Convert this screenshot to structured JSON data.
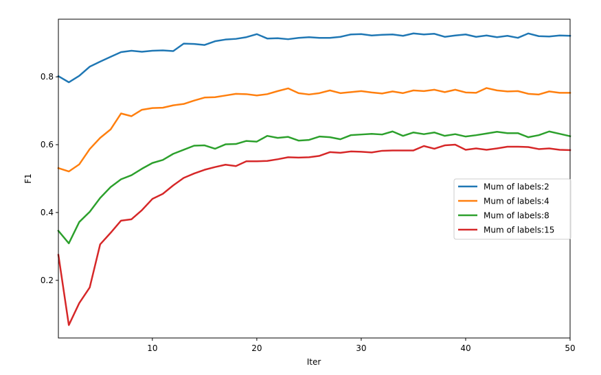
{
  "chart_data": {
    "type": "line",
    "title": "",
    "xlabel": "Iter",
    "ylabel": "F1",
    "xlim": [
      1,
      50
    ],
    "ylim": [
      0.03,
      0.97
    ],
    "xticks": [
      10,
      20,
      30,
      40,
      50
    ],
    "yticks": [
      0.2,
      0.4,
      0.6,
      0.8
    ],
    "grid": false,
    "legend_position": "center-right",
    "x": [
      1,
      2,
      3,
      4,
      5,
      6,
      7,
      8,
      9,
      10,
      11,
      12,
      13,
      14,
      15,
      16,
      17,
      18,
      19,
      20,
      21,
      22,
      23,
      24,
      25,
      26,
      27,
      28,
      29,
      30,
      31,
      32,
      33,
      34,
      35,
      36,
      37,
      38,
      39,
      40,
      41,
      42,
      43,
      44,
      45,
      46,
      47,
      48,
      49,
      50
    ],
    "series": [
      {
        "name": "Mum of labels:2",
        "color": "#1f77b4",
        "values": [
          0.802,
          0.784,
          0.803,
          0.83,
          0.845,
          0.859,
          0.873,
          0.877,
          0.874,
          0.877,
          0.878,
          0.876,
          0.898,
          0.897,
          0.894,
          0.905,
          0.91,
          0.912,
          0.917,
          0.926,
          0.913,
          0.914,
          0.911,
          0.915,
          0.917,
          0.915,
          0.915,
          0.918,
          0.925,
          0.926,
          0.922,
          0.924,
          0.925,
          0.921,
          0.928,
          0.925,
          0.927,
          0.918,
          0.922,
          0.925,
          0.918,
          0.922,
          0.917,
          0.921,
          0.915,
          0.928,
          0.92,
          0.919,
          0.922,
          0.921
        ]
      },
      {
        "name": "Mum of labels:4",
        "color": "#ff7f0e",
        "values": [
          0.531,
          0.521,
          0.542,
          0.587,
          0.62,
          0.645,
          0.692,
          0.684,
          0.703,
          0.708,
          0.709,
          0.716,
          0.72,
          0.73,
          0.739,
          0.74,
          0.745,
          0.75,
          0.749,
          0.745,
          0.749,
          0.758,
          0.766,
          0.752,
          0.748,
          0.752,
          0.76,
          0.752,
          0.755,
          0.758,
          0.754,
          0.751,
          0.757,
          0.752,
          0.76,
          0.758,
          0.762,
          0.755,
          0.762,
          0.754,
          0.753,
          0.767,
          0.76,
          0.757,
          0.758,
          0.75,
          0.748,
          0.757,
          0.753,
          0.753
        ]
      },
      {
        "name": "Mum of labels:8",
        "color": "#2ca02c",
        "values": [
          0.346,
          0.309,
          0.372,
          0.402,
          0.443,
          0.475,
          0.498,
          0.51,
          0.529,
          0.546,
          0.555,
          0.573,
          0.585,
          0.597,
          0.598,
          0.588,
          0.601,
          0.602,
          0.611,
          0.609,
          0.626,
          0.62,
          0.623,
          0.612,
          0.614,
          0.624,
          0.622,
          0.616,
          0.628,
          0.63,
          0.632,
          0.63,
          0.639,
          0.626,
          0.636,
          0.631,
          0.636,
          0.626,
          0.631,
          0.624,
          0.628,
          0.633,
          0.638,
          0.634,
          0.634,
          0.622,
          0.628,
          0.639,
          0.632,
          0.625
        ]
      },
      {
        "name": "Mum of labels:15",
        "color": "#d62728",
        "values": [
          0.275,
          0.068,
          0.133,
          0.179,
          0.306,
          0.34,
          0.376,
          0.38,
          0.407,
          0.44,
          0.455,
          0.48,
          0.502,
          0.515,
          0.526,
          0.534,
          0.541,
          0.537,
          0.551,
          0.551,
          0.552,
          0.557,
          0.563,
          0.562,
          0.563,
          0.567,
          0.578,
          0.576,
          0.58,
          0.579,
          0.577,
          0.582,
          0.583,
          0.583,
          0.583,
          0.596,
          0.588,
          0.598,
          0.6,
          0.585,
          0.589,
          0.585,
          0.589,
          0.594,
          0.594,
          0.593,
          0.587,
          0.589,
          0.585,
          0.584
        ]
      }
    ]
  }
}
